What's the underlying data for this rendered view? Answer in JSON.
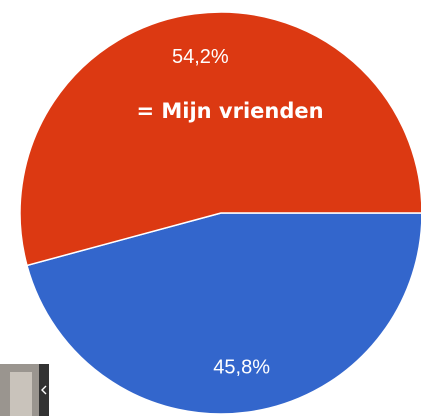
{
  "chart_data": {
    "type": "pie",
    "values": [
      45.8,
      54.2
    ],
    "value_labels": [
      "45,8%",
      "54,2%"
    ],
    "colors": [
      "#3366cc",
      "#dc3912"
    ],
    "start_angle": 90,
    "direction": "clockwise",
    "annotation": "= Mijn vrienden"
  }
}
